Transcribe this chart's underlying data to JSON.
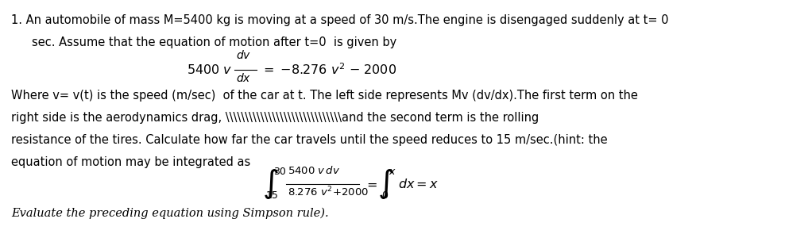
{
  "figsize": [
    10.22,
    3.0
  ],
  "dpi": 100,
  "bg_color": "#ffffff",
  "line1": "1. An automobile of mass M=5400 kg is moving at a speed of 30 m/s.The engine is disengaged suddenly at t= 0",
  "line2": "sec. Assume that the equation of motion after t=0  is given by",
  "line4": "Where v= v(t) is the speed (m/sec)  of the car at t. The left side represents Mv (dv/dx).The first term on the",
  "line5": "right side is the aerodynamics drag, \\\\\\\\\\\\\\\\\\\\\\\\\\\\\\\\\\\\\\\\\\\\\\\\\\\\\\\\\\\\and the second term is the rolling",
  "line6": "resistance of the tires. Calculate how far the car travels until the speed reduces to 15 m/sec.(hint: the",
  "line7": "equation of motion may be integrated as",
  "italic_line": "Evaluate the preceding equation using Simpson rule).",
  "text_color": "#000000",
  "fs": 10.5
}
